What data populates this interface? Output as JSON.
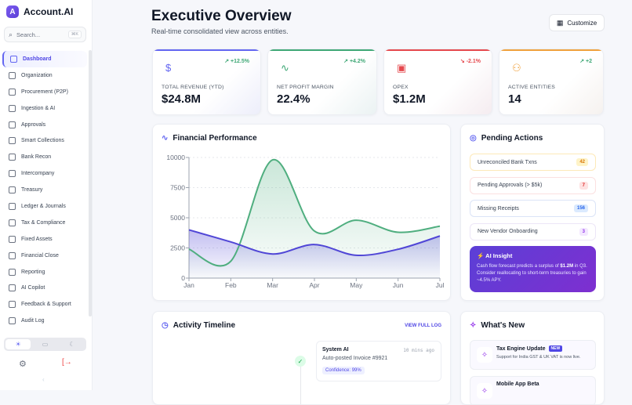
{
  "app": {
    "logo_letter": "A",
    "name": "Account.AI"
  },
  "search": {
    "placeholder": "Search...",
    "shortcut": "⌘K"
  },
  "sidebar": {
    "items": [
      {
        "label": "Dashboard",
        "icon": "grid-icon",
        "active": true
      },
      {
        "label": "Organization",
        "icon": "building-icon"
      },
      {
        "label": "Procurement (P2P)",
        "icon": "cart-icon"
      },
      {
        "label": "Ingestion & AI",
        "icon": "file-icon"
      },
      {
        "label": "Approvals",
        "icon": "check-square-icon"
      },
      {
        "label": "Smart Collections",
        "icon": "coins-icon"
      },
      {
        "label": "Bank Recon",
        "icon": "bank-icon"
      },
      {
        "label": "Intercompany",
        "icon": "network-icon"
      },
      {
        "label": "Treasury",
        "icon": "trending-up-icon"
      },
      {
        "label": "Ledger & Journals",
        "icon": "book-icon"
      },
      {
        "label": "Tax & Compliance",
        "icon": "globe-icon"
      },
      {
        "label": "Fixed Assets",
        "icon": "box-icon"
      },
      {
        "label": "Financial Close",
        "icon": "calendar-check-icon"
      },
      {
        "label": "Reporting",
        "icon": "pie-chart-icon"
      },
      {
        "label": "AI Copilot",
        "icon": "chat-icon"
      },
      {
        "label": "Feedback & Support",
        "icon": "lifebuoy-icon"
      },
      {
        "label": "Audit Log",
        "icon": "shield-check-icon"
      }
    ],
    "theme_selected": "light"
  },
  "header": {
    "title": "Executive Overview",
    "subtitle": "Real-time consolidated view across entities.",
    "customize_label": "Customize"
  },
  "kpis": [
    {
      "label": "TOTAL REVENUE (YTD)",
      "value": "$24.8M",
      "delta": "↗ +12.5%",
      "icon": "dollar-icon",
      "color": "#6366f1",
      "trend": "up"
    },
    {
      "label": "NET PROFIT MARGIN",
      "value": "22.4%",
      "delta": "↗ +4.2%",
      "icon": "activity-icon",
      "color": "#3fa876",
      "trend": "up"
    },
    {
      "label": "OPEX",
      "value": "$1.2M",
      "delta": "↘ -2.1%",
      "icon": "wallet-icon",
      "color": "#e5484d",
      "trend": "down"
    },
    {
      "label": "ACTIVE ENTITIES",
      "value": "14",
      "delta": "↗ +2",
      "icon": "users-icon",
      "color": "#f0a13c",
      "trend": "up"
    }
  ],
  "chart_card": {
    "title": "Financial Performance"
  },
  "chart_data": {
    "type": "area",
    "categories": [
      "Jan",
      "Feb",
      "Mar",
      "Apr",
      "May",
      "Jun",
      "Jul"
    ],
    "series": [
      {
        "values": [
          2400,
          1400,
          9800,
          3900,
          4800,
          3800,
          4300
        ],
        "color": "#4fae7f"
      },
      {
        "values": [
          4000,
          3000,
          2000,
          2780,
          1890,
          2390,
          3490
        ],
        "color": "#5046d6"
      }
    ],
    "ylim": [
      0,
      10000
    ],
    "yticks": [
      0,
      2500,
      5000,
      7500,
      10000
    ],
    "grid": true
  },
  "pending": {
    "title": "Pending Actions",
    "items": [
      {
        "label": "Unreconciled Bank Txns",
        "count": "42",
        "color": "#d97706",
        "bg": "#fef3c7",
        "border": "#fde9b8"
      },
      {
        "label": "Pending Approvals (> $5k)",
        "count": "7",
        "color": "#dc2626",
        "bg": "#fee2e2",
        "border": "#fbe0e0"
      },
      {
        "label": "Missing Receipts",
        "count": "156",
        "color": "#2563eb",
        "bg": "#dbeafe",
        "border": "#dbe4f7"
      },
      {
        "label": "New Vendor Onboarding",
        "count": "3",
        "color": "#9333ea",
        "bg": "#f3e8ff",
        "border": "#ece6f7"
      }
    ],
    "insight": {
      "title": "AI Insight",
      "text_before": "Cash flow forecast predicts a surplus of ",
      "highlight": "$1.2M",
      "text_after": " in Q3. Consider reallocating to short-term treasuries to gain ~4.5% APY."
    }
  },
  "activity": {
    "title": "Activity Timeline",
    "view_all": "VIEW FULL LOG",
    "events": [
      {
        "actor": "System AI",
        "time": "10 mins ago",
        "action": "Auto-posted Invoice #9921",
        "tag": "Confidence: 99%"
      }
    ]
  },
  "whats_new": {
    "title": "What's New",
    "items": [
      {
        "title": "Tax Engine Update",
        "badge": "NEW",
        "desc": "Support for India GST & UK VAT is now live."
      },
      {
        "title": "Mobile App Beta",
        "desc": ""
      }
    ]
  }
}
